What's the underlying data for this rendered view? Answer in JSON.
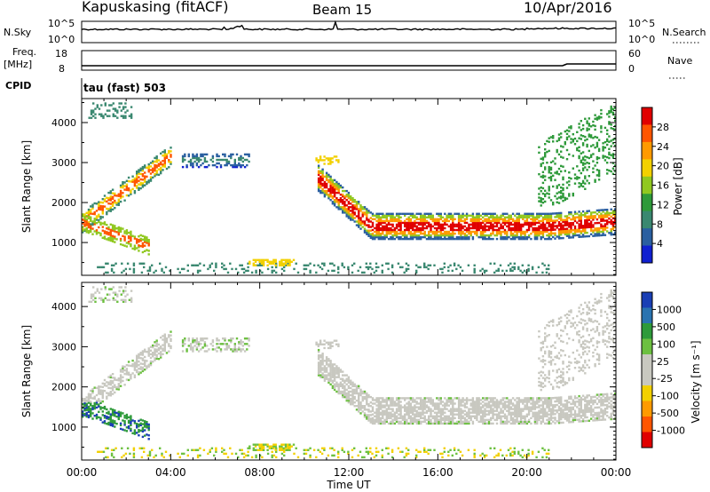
{
  "header": {
    "station": "Kapuskasing (fitACF)",
    "beam": "Beam 15",
    "date": "10/Apr/2016"
  },
  "top_panels": {
    "nsky_label": "N.Sky",
    "nsky_ticks": [
      "10^5",
      "10^0"
    ],
    "nsearch_label": "N.Search",
    "nsearch_ticks": [
      "10^5",
      "10^0"
    ],
    "freq_label": "Freq.",
    "freq_unit": "[MHz]",
    "freq_ticks": [
      "18",
      "8"
    ],
    "nave_label": "Nave",
    "nave_ticks": [
      "60",
      "0"
    ],
    "cpid_label": "CPID",
    "cpid_value": "tau (fast) 503"
  },
  "chart_data": [
    {
      "type": "heatmap",
      "name": "power",
      "ylabel": "Slant Range [km]",
      "ylim": [
        180,
        4600
      ],
      "yticks": [
        1000,
        2000,
        3000,
        4000
      ],
      "xlim": [
        0,
        24
      ],
      "xticks": [
        "00:00",
        "04:00",
        "08:00",
        "12:00",
        "16:00",
        "20:00",
        "00:00"
      ],
      "colorbar": {
        "label": "Power [dB]",
        "ticks": [
          "28",
          "24",
          "20",
          "16",
          "12",
          "8",
          "4"
        ],
        "colors": [
          "#e00000",
          "#ff5500",
          "#ff9a00",
          "#f2d000",
          "#90c820",
          "#2e9a3a",
          "#3a8870",
          "#2a5fa0",
          "#1020d0"
        ]
      }
    },
    {
      "type": "heatmap",
      "name": "velocity",
      "ylabel": "Slant Range [km]",
      "ylim": [
        180,
        4600
      ],
      "yticks": [
        1000,
        2000,
        3000,
        4000
      ],
      "xlim": [
        0,
        24
      ],
      "xticks": [
        "00:00",
        "04:00",
        "08:00",
        "12:00",
        "16:00",
        "20:00",
        "00:00"
      ],
      "xlabel": "Time UT",
      "colorbar": {
        "label": "Velocity [m s⁻¹]",
        "ticks": [
          "1000",
          "500",
          "100",
          "25",
          "-25",
          "-100",
          "-500",
          "-1000"
        ],
        "colors": [
          "#1a3fb5",
          "#2a73b0",
          "#2e9a3a",
          "#6cc040",
          "#c8c8c0",
          "#c8c8c0",
          "#f2d000",
          "#ff9a00",
          "#ff5500",
          "#e00000"
        ]
      }
    }
  ]
}
